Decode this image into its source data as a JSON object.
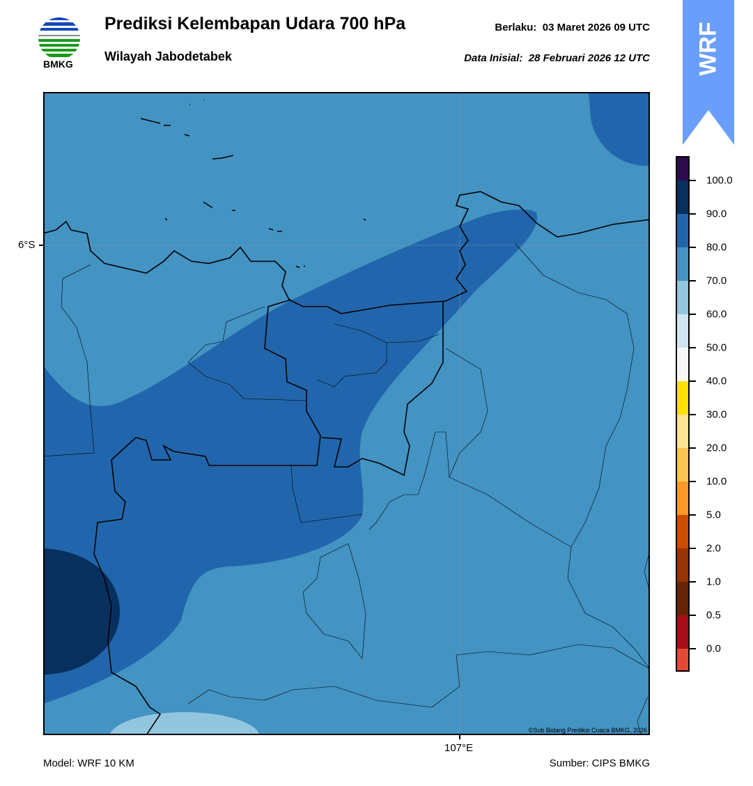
{
  "header": {
    "title": "Prediksi Kelembapan Udara 700 hPa",
    "subtitle": "Wilayah Jabodetabek",
    "valid_label": "Berlaku:",
    "valid_time": "03 Maret 2026 09 UTC",
    "init_label": "Data Inisial:",
    "init_time": "28 Februari 2026 12 UTC",
    "logo_text": "BMKG",
    "badge": "WRF"
  },
  "map": {
    "lat_label": "6°S",
    "lon_label": "107°E",
    "copyright": "©Sub Bidang Prediksi Cuaca BMKG, 2026",
    "field_levels": [
      "70-80",
      "80-90",
      "90-100",
      "60-70"
    ]
  },
  "colorbar": {
    "ticks": [
      "100.0",
      "90.0",
      "80.0",
      "70.0",
      "60.0",
      "50.0",
      "40.0",
      "30.0",
      "20.0",
      "10.0",
      "5.0",
      "2.0",
      "1.0",
      "0.5",
      "0.0"
    ],
    "colors": [
      "#2d0a4e",
      "#08305e",
      "#2166ac",
      "#4393c3",
      "#92c5de",
      "#d1e5f0",
      "#f7f7f7",
      "#ffe000",
      "#fee391",
      "#fec44f",
      "#fe9929",
      "#cc4c02",
      "#993404",
      "#662506",
      "#a50f15",
      "#e34a33"
    ]
  },
  "footer": {
    "model": "Model: WRF 10 KM",
    "source": "Sumber: CIPS BMKG"
  }
}
